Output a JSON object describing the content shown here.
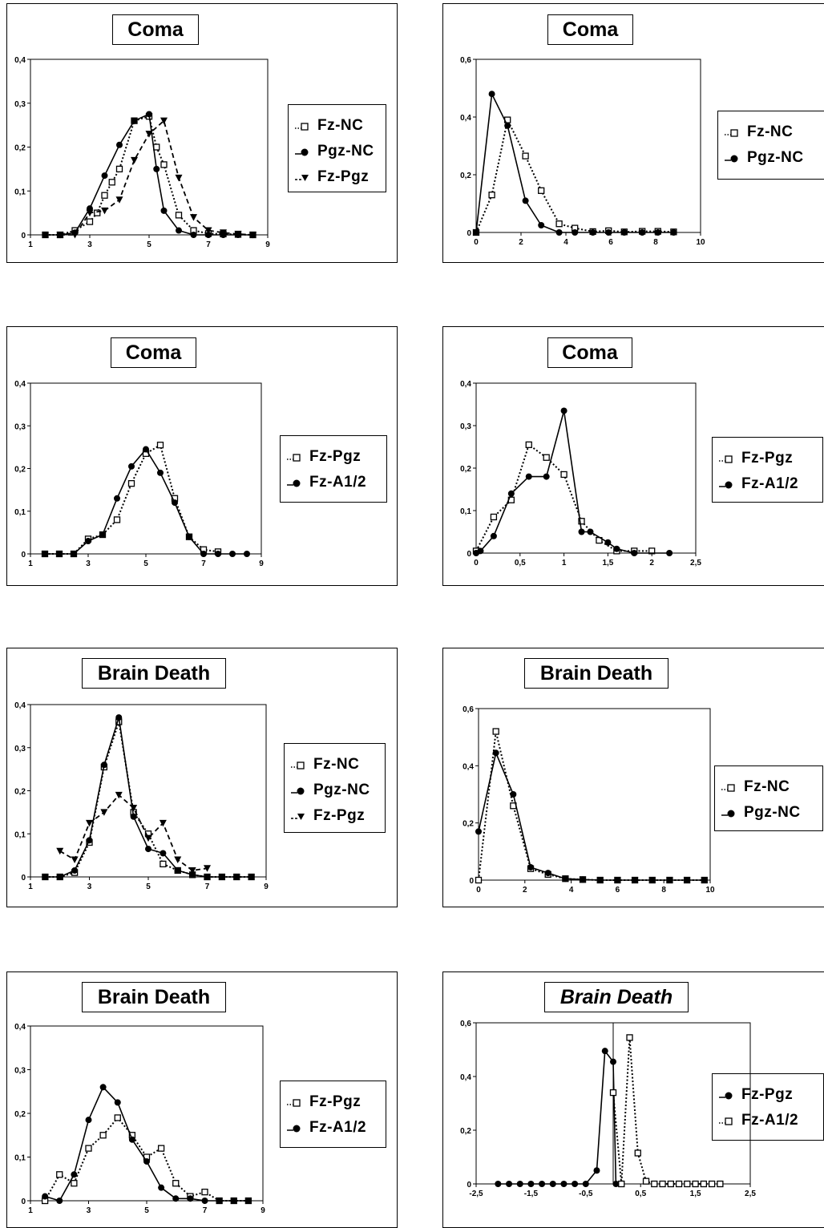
{
  "chart_data": [
    {
      "type": "line",
      "title": "Coma",
      "xlim": [
        1,
        9
      ],
      "ylim": [
        0,
        0.4
      ],
      "x_ticks": [
        "1",
        "3",
        "5",
        "7",
        "9"
      ],
      "y_ticks": [
        "0",
        "0,1",
        "0,2",
        "0,3",
        "0,4"
      ],
      "legend": "right",
      "series": [
        {
          "name": "Fz-NC",
          "marker": "square",
          "line": "dotted",
          "x": [
            1.5,
            2,
            2.5,
            3,
            3.25,
            3.5,
            3.75,
            4,
            4.5,
            5,
            5.25,
            5.5,
            6,
            6.5,
            7,
            7.5,
            8,
            8.5
          ],
          "y": [
            0,
            0,
            0.01,
            0.03,
            0.05,
            0.09,
            0.12,
            0.15,
            0.26,
            0.27,
            0.2,
            0.16,
            0.045,
            0.01,
            0.003,
            0.002,
            0.001,
            0
          ]
        },
        {
          "name": "Pgz-NC",
          "marker": "circle",
          "line": "solid",
          "x": [
            1.5,
            2,
            2.5,
            3,
            3.5,
            4,
            4.5,
            5,
            5.25,
            5.5,
            6,
            6.5,
            7,
            7.5,
            8,
            8.5
          ],
          "y": [
            0,
            0,
            0.005,
            0.06,
            0.135,
            0.205,
            0.26,
            0.275,
            0.15,
            0.055,
            0.01,
            0,
            0,
            0,
            0,
            0
          ]
        },
        {
          "name": "Fz-Pgz",
          "marker": "triangle",
          "line": "dashed",
          "x": [
            2,
            2.5,
            3,
            3.5,
            4,
            4.5,
            5,
            5.5,
            6,
            6.5,
            7,
            7.5,
            8,
            8.5
          ],
          "y": [
            0,
            0,
            0.05,
            0.055,
            0.08,
            0.17,
            0.23,
            0.26,
            0.13,
            0.04,
            0.01,
            0.005,
            0.002,
            0
          ]
        }
      ]
    },
    {
      "type": "line",
      "title": "Coma",
      "xlim": [
        0,
        10
      ],
      "ylim": [
        0,
        0.6
      ],
      "x_ticks": [
        "0",
        "2",
        "4",
        "6",
        "8",
        "10"
      ],
      "y_ticks": [
        "0",
        "0,2",
        "0,4",
        "0,6"
      ],
      "legend": "right",
      "series": [
        {
          "name": "Fz-NC",
          "marker": "square",
          "line": "dotted",
          "x": [
            0,
            0.7,
            1.4,
            2.2,
            2.9,
            3.7,
            4.4,
            5.2,
            5.9,
            6.6,
            7.4,
            8.1,
            8.8
          ],
          "y": [
            0,
            0.13,
            0.39,
            0.265,
            0.145,
            0.03,
            0.015,
            0.003,
            0.006,
            0.002,
            0.004,
            0.004,
            0.002
          ]
        },
        {
          "name": "Pgz-NC",
          "marker": "circle",
          "line": "solid",
          "x": [
            0,
            0.7,
            1.4,
            2.2,
            2.9,
            3.7,
            4.4,
            5.2,
            5.9,
            6.6,
            7.4,
            8.1,
            8.8
          ],
          "y": [
            0,
            0.48,
            0.37,
            0.11,
            0.025,
            0,
            0,
            0,
            0,
            0,
            0,
            0,
            0
          ]
        }
      ]
    },
    {
      "type": "line",
      "title": "Coma",
      "xlim": [
        1,
        9
      ],
      "ylim": [
        0,
        0.4
      ],
      "x_ticks": [
        "1",
        "3",
        "5",
        "7",
        "9"
      ],
      "y_ticks": [
        "0",
        "0,1",
        "0,2",
        "0,3",
        "0,4"
      ],
      "legend": "right",
      "series": [
        {
          "name": "Fz-Pgz",
          "marker": "square",
          "line": "dotted",
          "x": [
            1.5,
            2,
            2.5,
            3,
            3.5,
            4,
            4.5,
            5,
            5.5,
            6,
            6.5,
            7,
            7.5
          ],
          "y": [
            0,
            0,
            0,
            0.035,
            0.045,
            0.08,
            0.165,
            0.235,
            0.255,
            0.13,
            0.04,
            0.01,
            0.005
          ]
        },
        {
          "name": "Fz-A1/2",
          "marker": "circle",
          "line": "solid",
          "x": [
            1.5,
            2,
            2.5,
            3,
            3.5,
            4,
            4.5,
            5,
            5.5,
            6,
            6.5,
            7,
            7.5,
            8,
            8.5
          ],
          "y": [
            0,
            0,
            0,
            0.03,
            0.045,
            0.13,
            0.205,
            0.245,
            0.19,
            0.12,
            0.04,
            0,
            0,
            0,
            0
          ]
        }
      ]
    },
    {
      "type": "line",
      "title": "Coma",
      "xlim": [
        0,
        2.5
      ],
      "ylim": [
        0,
        0.4
      ],
      "x_ticks": [
        "0",
        "0,5",
        "1",
        "1,5",
        "2",
        "2,5"
      ],
      "y_ticks": [
        "0",
        "0,1",
        "0,2",
        "0,3",
        "0,4"
      ],
      "legend": "right",
      "series": [
        {
          "name": "Fz-Pgz",
          "marker": "square",
          "line": "dotted",
          "x": [
            0,
            0.2,
            0.4,
            0.6,
            0.8,
            1,
            1.2,
            1.4,
            1.6,
            1.8,
            2
          ],
          "y": [
            0.005,
            0.085,
            0.125,
            0.255,
            0.225,
            0.185,
            0.075,
            0.03,
            0.005,
            0.005,
            0.005
          ]
        },
        {
          "name": "Fz-A1/2",
          "marker": "circle",
          "line": "solid",
          "x": [
            0,
            0.05,
            0.2,
            0.4,
            0.6,
            0.8,
            1,
            1.2,
            1.3,
            1.5,
            1.6,
            1.8,
            2.2
          ],
          "y": [
            0,
            0.005,
            0.04,
            0.14,
            0.18,
            0.18,
            0.335,
            0.05,
            0.05,
            0.025,
            0.01,
            0,
            0
          ]
        }
      ]
    },
    {
      "type": "line",
      "title": "Brain Death",
      "xlim": [
        1,
        9
      ],
      "ylim": [
        0,
        0.4
      ],
      "x_ticks": [
        "1",
        "3",
        "5",
        "7",
        "9"
      ],
      "y_ticks": [
        "0",
        "0,1",
        "0,2",
        "0,3",
        "0,4"
      ],
      "legend": "right",
      "series": [
        {
          "name": "Fz-NC",
          "marker": "square",
          "line": "dotted",
          "x": [
            1.5,
            2,
            2.5,
            3,
            3.5,
            4,
            4.5,
            5,
            5.5,
            6,
            6.5,
            7,
            7.5,
            8,
            8.5
          ],
          "y": [
            0,
            0,
            0.01,
            0.08,
            0.255,
            0.36,
            0.15,
            0.1,
            0.03,
            0.015,
            0.005,
            0,
            0,
            0,
            0
          ]
        },
        {
          "name": "Pgz-NC",
          "marker": "circle",
          "line": "solid",
          "x": [
            1.5,
            2,
            2.5,
            3,
            3.5,
            4,
            4.5,
            5,
            5.5,
            6,
            6.5,
            7,
            7.5,
            8,
            8.5
          ],
          "y": [
            0,
            0,
            0.015,
            0.085,
            0.26,
            0.37,
            0.14,
            0.065,
            0.055,
            0.015,
            0.005,
            0,
            0,
            0,
            0
          ]
        },
        {
          "name": "Fz-Pgz",
          "marker": "triangle",
          "line": "dashed",
          "x": [
            2,
            2.5,
            3,
            3.5,
            4,
            4.5,
            5,
            5.5,
            6,
            6.5,
            7
          ],
          "y": [
            0.06,
            0.04,
            0.125,
            0.15,
            0.19,
            0.16,
            0.09,
            0.125,
            0.04,
            0.015,
            0.02
          ]
        }
      ]
    },
    {
      "type": "line",
      "title": "Brain Death",
      "xlim": [
        0,
        10
      ],
      "ylim": [
        0,
        0.6
      ],
      "x_ticks": [
        "0",
        "2",
        "4",
        "6",
        "8",
        "10"
      ],
      "y_ticks": [
        "0",
        "0,2",
        "0,4",
        "0,6"
      ],
      "legend": "right",
      "series": [
        {
          "name": "Fz-NC",
          "marker": "square",
          "line": "dotted",
          "x": [
            0,
            0.75,
            1.5,
            2.25,
            3,
            3.75,
            4.5,
            5.25,
            6,
            6.75,
            7.5,
            8.25,
            9,
            9.75
          ],
          "y": [
            0,
            0.52,
            0.26,
            0.04,
            0.02,
            0.005,
            0.002,
            0,
            0,
            0,
            0,
            0,
            0,
            0
          ]
        },
        {
          "name": "Pgz-NC",
          "marker": "circle",
          "line": "solid",
          "x": [
            0,
            0.75,
            1.5,
            2.25,
            3,
            3.75,
            4.5,
            5.25,
            6,
            6.75,
            7.5,
            8.25,
            9,
            9.75
          ],
          "y": [
            0.17,
            0.445,
            0.3,
            0.045,
            0.025,
            0.005,
            0.002,
            0,
            0,
            0,
            0,
            0,
            0,
            0
          ]
        }
      ]
    },
    {
      "type": "line",
      "title": "Brain Death",
      "xlim": [
        1,
        9
      ],
      "ylim": [
        0,
        0.4
      ],
      "x_ticks": [
        "1",
        "3",
        "5",
        "7",
        "9"
      ],
      "y_ticks": [
        "0",
        "0,1",
        "0,2",
        "0,3",
        "0,4"
      ],
      "legend": "right",
      "series": [
        {
          "name": "Fz-Pgz",
          "marker": "square",
          "line": "dotted",
          "x": [
            1.5,
            2,
            2.5,
            3,
            3.5,
            4,
            4.5,
            5,
            5.5,
            6,
            6.5,
            7,
            7.5,
            8,
            8.5
          ],
          "y": [
            0,
            0.06,
            0.04,
            0.12,
            0.15,
            0.19,
            0.15,
            0.1,
            0.12,
            0.04,
            0.01,
            0.02,
            0,
            0,
            0
          ]
        },
        {
          "name": "Fz-A1/2",
          "marker": "circle",
          "line": "solid",
          "x": [
            1.5,
            2,
            2.5,
            3,
            3.5,
            4,
            4.5,
            5,
            5.5,
            6,
            6.5,
            7,
            7.5,
            8,
            8.5
          ],
          "y": [
            0.01,
            0,
            0.06,
            0.185,
            0.26,
            0.225,
            0.14,
            0.09,
            0.03,
            0.005,
            0.005,
            0,
            0,
            0,
            0
          ]
        }
      ]
    },
    {
      "type": "line",
      "title": "Brain Death",
      "title_style": "italic",
      "xlim": [
        -2.5,
        2.5
      ],
      "ylim": [
        0,
        0.6
      ],
      "x_ticks": [
        "-2,5",
        "-1,5",
        "-0,5",
        "0,5",
        "1,5",
        "2,5"
      ],
      "y_ticks": [
        "0",
        "0,2",
        "0,4",
        "0,6"
      ],
      "vline_at_x": 0,
      "legend": "right",
      "series": [
        {
          "name": "Fz-Pgz",
          "marker": "circle",
          "line": "solid",
          "x": [
            -2.1,
            -1.9,
            -1.7,
            -1.5,
            -1.3,
            -1.1,
            -0.9,
            -0.7,
            -0.5,
            -0.3,
            -0.15,
            0,
            0.05
          ],
          "y": [
            0,
            0,
            0,
            0,
            0,
            0,
            0,
            0,
            0,
            0.05,
            0.495,
            0.455,
            0
          ]
        },
        {
          "name": "Fz-A1/2",
          "marker": "square",
          "line": "dotted",
          "x": [
            0,
            0.15,
            0.3,
            0.45,
            0.6,
            0.75,
            0.9,
            1.05,
            1.2,
            1.35,
            1.5,
            1.65,
            1.8,
            1.95
          ],
          "y": [
            0.34,
            0,
            0.545,
            0.115,
            0.01,
            0,
            0,
            0,
            0,
            0,
            0,
            0,
            0,
            0
          ]
        }
      ]
    }
  ]
}
